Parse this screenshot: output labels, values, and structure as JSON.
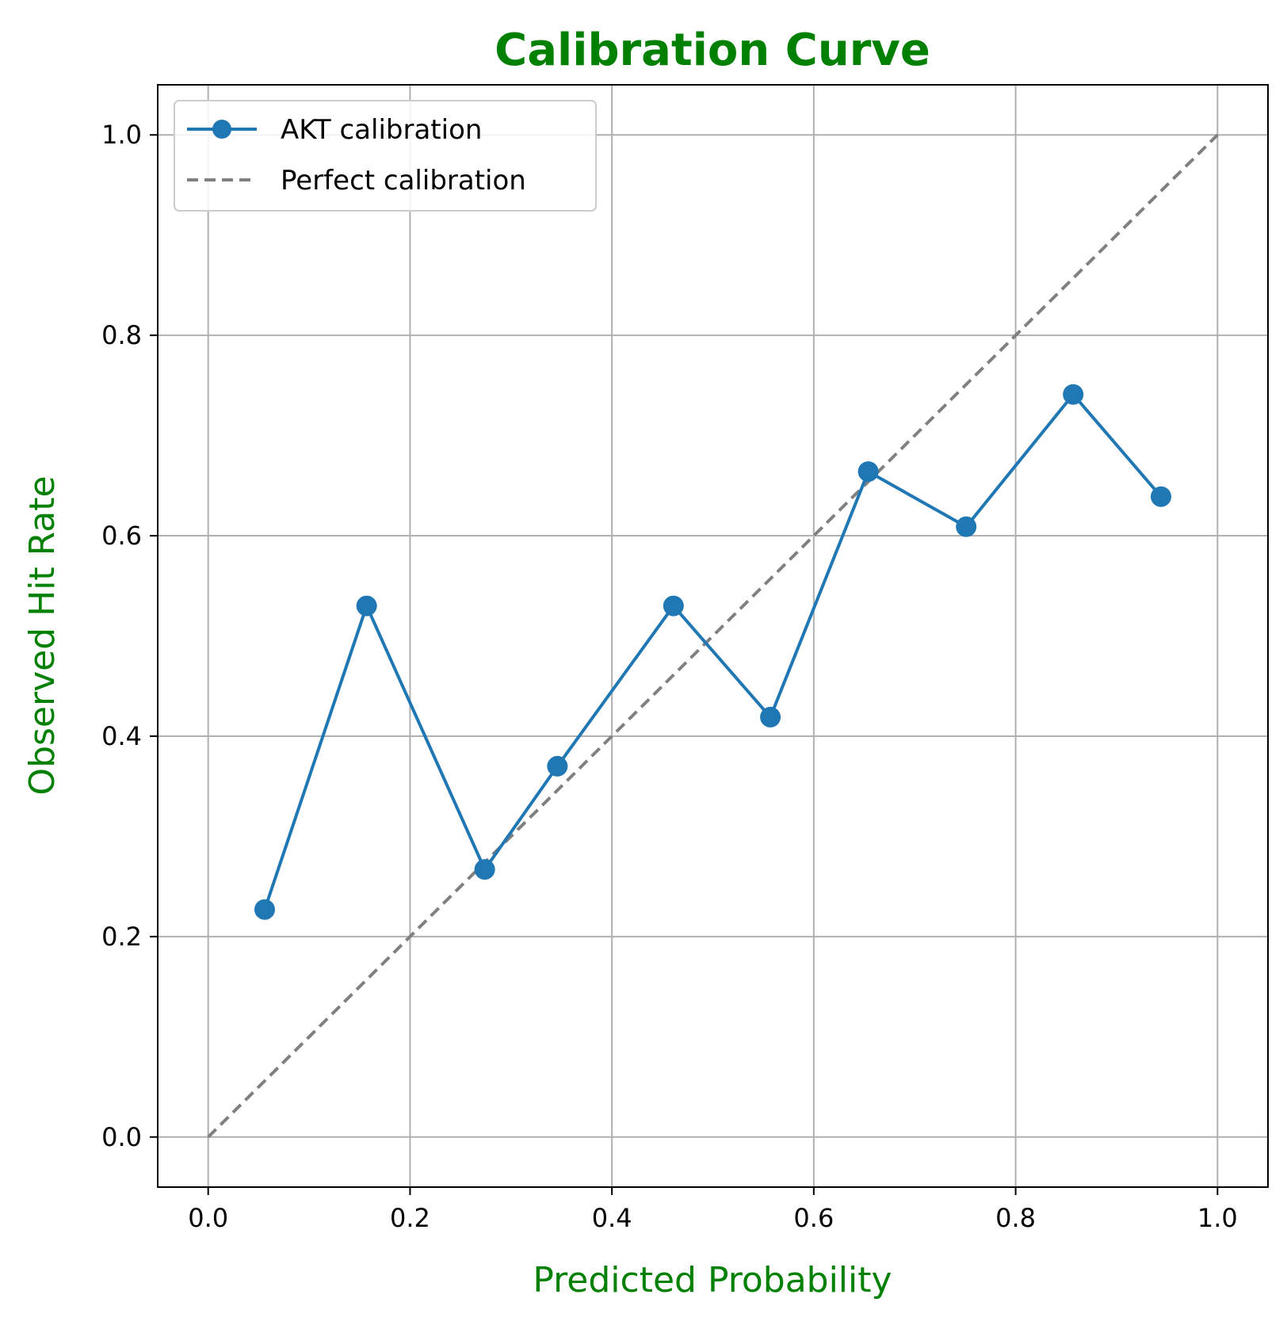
{
  "chart_data": {
    "type": "line",
    "title": "Calibration Curve",
    "xlabel": "Predicted Probability",
    "ylabel": "Observed Hit Rate",
    "xlim": [
      -0.05,
      1.05
    ],
    "ylim": [
      -0.05,
      1.05
    ],
    "xticks": [
      0.0,
      0.2,
      0.4,
      0.6,
      0.8,
      1.0
    ],
    "yticks": [
      0.0,
      0.2,
      0.4,
      0.6,
      0.8,
      1.0
    ],
    "xtick_labels": [
      "0.0",
      "0.2",
      "0.4",
      "0.6",
      "0.8",
      "1.0"
    ],
    "ytick_labels": [
      "0.0",
      "0.2",
      "0.4",
      "0.6",
      "0.8",
      "1.0"
    ],
    "grid": true,
    "legend_position": "top-left",
    "series": [
      {
        "name": "AKT calibration",
        "style": "solid line with circle markers",
        "color": "#1f77b4",
        "x": [
          0.056,
          0.157,
          0.274,
          0.346,
          0.461,
          0.557,
          0.654,
          0.751,
          0.857,
          0.944
        ],
        "y": [
          0.227,
          0.53,
          0.267,
          0.37,
          0.53,
          0.419,
          0.664,
          0.609,
          0.741,
          0.639
        ]
      },
      {
        "name": "Perfect calibration",
        "style": "dashed line",
        "color": "#808080",
        "x": [
          0.0,
          1.0
        ],
        "y": [
          0.0,
          1.0
        ]
      }
    ],
    "colors": {
      "title": "#008000",
      "axis_labels": "#008000",
      "grid": "#b0b0b0"
    }
  }
}
